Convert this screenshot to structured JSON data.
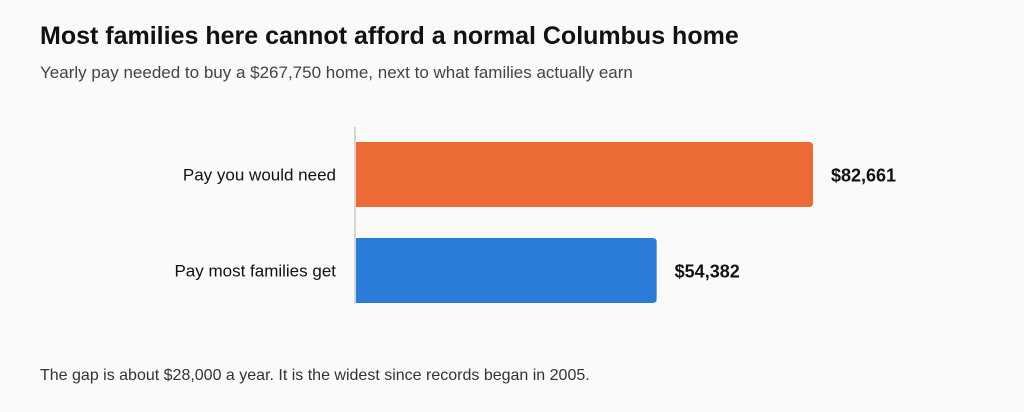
{
  "title": "Most families here cannot afford a normal Columbus home",
  "subtitle": "Yearly pay needed to buy a $267,750 home, next to what families actually earn",
  "footnote": "The gap is about $28,000 a year. It is the widest since records began in 2005.",
  "chart_data": {
    "type": "bar",
    "orientation": "horizontal",
    "categories": [
      "Pay you would need",
      "Pay most families get"
    ],
    "values": [
      82661,
      54382
    ],
    "value_labels": [
      "$82,661",
      "$54,382"
    ],
    "colors": [
      "#ec6a36",
      "#2b7bd8"
    ],
    "xlim": [
      0,
      82661
    ],
    "grid": false,
    "title": "Most families here cannot afford a normal Columbus home",
    "xlabel": "",
    "ylabel": ""
  }
}
